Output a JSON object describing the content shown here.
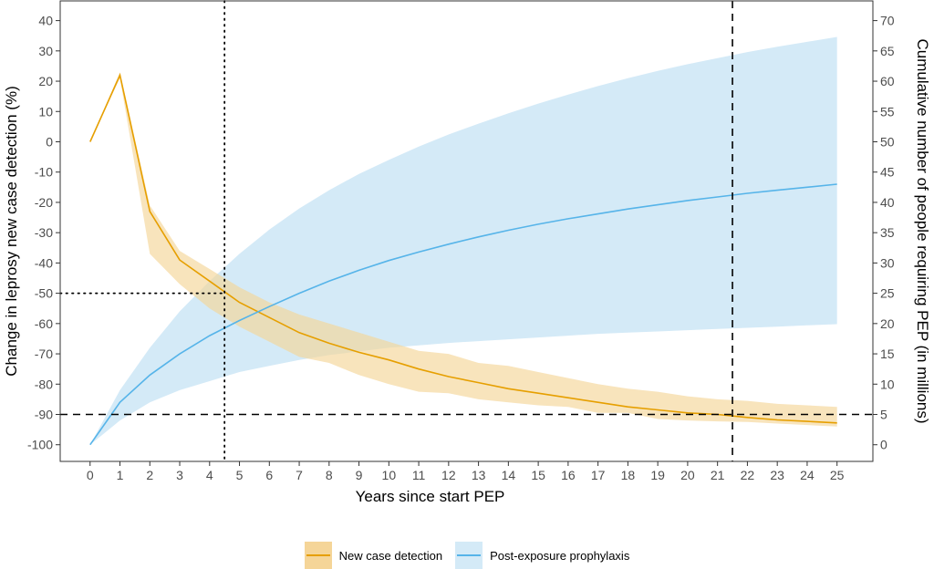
{
  "chart_data": {
    "type": "line",
    "title": "",
    "xlabel": "Years since start PEP",
    "ylabel_left": "Change in leprosy new case detection (%)",
    "ylabel_right": "Cumulative number of people requiring PEP (in millions)",
    "x_ticks": [
      0,
      1,
      2,
      3,
      4,
      5,
      6,
      7,
      8,
      9,
      10,
      11,
      12,
      13,
      14,
      15,
      16,
      17,
      18,
      19,
      20,
      21,
      22,
      23,
      24,
      25
    ],
    "xlim": [
      -1.0,
      26.2
    ],
    "y_left_ticks": [
      40,
      30,
      20,
      10,
      0,
      -10,
      -20,
      -30,
      -40,
      -50,
      -60,
      -70,
      -80,
      -90,
      -100
    ],
    "y_left_lim": [
      -105.5,
      46.5
    ],
    "y_right_ticks": [
      70,
      65,
      60,
      55,
      50,
      45,
      40,
      35,
      30,
      25,
      20,
      15,
      10,
      5,
      0
    ],
    "y_right_lim": [
      -2.75,
      73.25
    ],
    "grid": false,
    "legend_position": "bottom",
    "series": [
      {
        "name": "New case detection",
        "axis": "left",
        "color": "#E69F00",
        "band_color": "#F5D598",
        "x": [
          0,
          1,
          2,
          3,
          4,
          5,
          6,
          7,
          8,
          9,
          10,
          11,
          12,
          13,
          14,
          15,
          16,
          17,
          18,
          19,
          20,
          21,
          22,
          23,
          24,
          25
        ],
        "values": [
          0,
          22,
          -23,
          -39,
          -46,
          -53,
          -58,
          -63,
          -66.5,
          -69.5,
          -72,
          -75,
          -77.5,
          -79.5,
          -81.5,
          -83,
          -84.5,
          -86,
          -87.5,
          -88.5,
          -89.5,
          -90,
          -91,
          -91.8,
          -92.3,
          -92.8
        ],
        "lower": [
          0,
          21,
          -37,
          -47,
          -55,
          -61,
          -66,
          -71,
          -73,
          -77,
          -80,
          -82.5,
          -83,
          -85,
          -86,
          -87,
          -87.5,
          -89.5,
          -89.5,
          -91.5,
          -92,
          -92.3,
          -92.5,
          -93,
          -93.5,
          -94
        ],
        "upper": [
          0,
          23,
          -21,
          -36,
          -42,
          -48,
          -53,
          -57,
          -60,
          -63,
          -66,
          -69,
          -70,
          -73,
          -74,
          -76,
          -78,
          -80,
          -81.5,
          -82.5,
          -84,
          -85,
          -85.5,
          -86.5,
          -87,
          -87.5
        ]
      },
      {
        "name": "Post-exposure prophylaxis",
        "axis": "right",
        "color": "#56B4E9",
        "band_color": "#D4EAF7",
        "x": [
          0,
          1,
          2,
          3,
          4,
          5,
          6,
          7,
          8,
          9,
          10,
          11,
          12,
          13,
          14,
          15,
          16,
          17,
          18,
          19,
          20,
          21,
          22,
          23,
          24,
          25
        ],
        "values": [
          0,
          7,
          11.5,
          15,
          18,
          20.5,
          22.8,
          25,
          27,
          28.8,
          30.4,
          31.8,
          33.1,
          34.3,
          35.4,
          36.4,
          37.3,
          38.1,
          38.9,
          39.6,
          40.3,
          40.9,
          41.5,
          42.0,
          42.5,
          43.0
        ],
        "lower": [
          0,
          4,
          7,
          9,
          10.5,
          12,
          13,
          14,
          14.8,
          15.4,
          16,
          16.4,
          16.8,
          17.1,
          17.4,
          17.7,
          18,
          18.3,
          18.5,
          18.7,
          18.9,
          19.1,
          19.3,
          19.5,
          19.7,
          19.9
        ],
        "upper": [
          0,
          9,
          16,
          22,
          27,
          31.5,
          35.5,
          39,
          42,
          44.7,
          47,
          49.2,
          51.2,
          53,
          54.7,
          56.3,
          57.8,
          59.2,
          60.5,
          61.7,
          62.8,
          63.8,
          64.8,
          65.7,
          66.5,
          67.3
        ]
      }
    ],
    "reference_lines": [
      {
        "orientation": "vertical",
        "x": 4.5,
        "style": "dotted",
        "to_y": -50,
        "label": ""
      },
      {
        "orientation": "horizontal",
        "y": -50,
        "style": "dotted",
        "to_x": 4.5,
        "label": ""
      },
      {
        "orientation": "vertical",
        "x": 21.5,
        "style": "dashed",
        "label": ""
      },
      {
        "orientation": "horizontal",
        "y": -90,
        "style": "dashed",
        "label": ""
      }
    ]
  }
}
